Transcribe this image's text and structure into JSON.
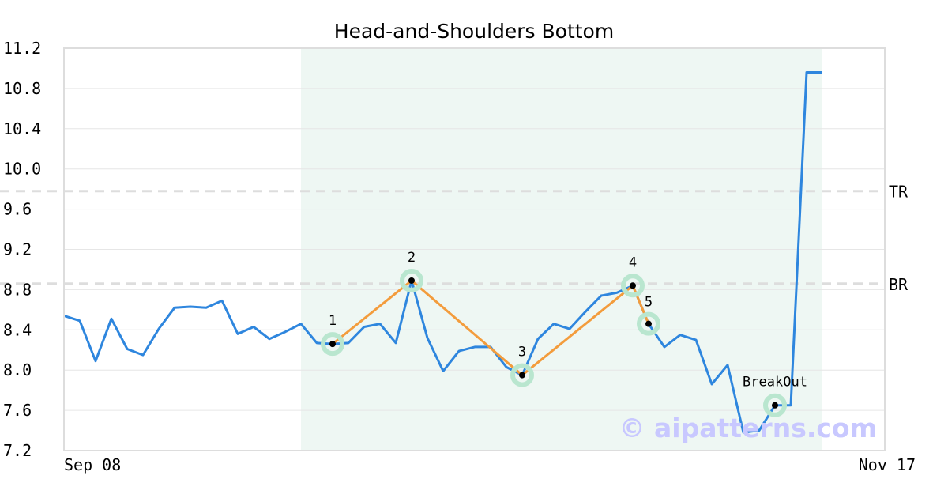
{
  "watermark": "© aipatterns.com",
  "colors": {
    "price": "#2e86de",
    "pattern": "#f39c3c",
    "marker_ring": "#b9e6cf",
    "highlight": "#eef7f3",
    "level": "#dddddd",
    "grid": "#e6e6e6",
    "frame": "#dddddd"
  },
  "chart_data": {
    "type": "line",
    "title": "Head-and-Shoulders Bottom",
    "xlabel": "",
    "ylabel": "",
    "ylim": [
      7.2,
      11.2
    ],
    "yticks": [
      "7.2",
      "7.6",
      "8.0",
      "8.4",
      "8.8",
      "9.2",
      "9.6",
      "10.0",
      "10.4",
      "10.8",
      "11.2"
    ],
    "xtick_labels": [
      {
        "index": 0,
        "label": "Sep 08"
      },
      {
        "index": 52,
        "label": "Nov 17"
      }
    ],
    "grid": true,
    "series": [
      {
        "values": [
          8.54,
          8.49,
          8.09,
          8.51,
          8.21,
          8.15,
          8.41,
          8.62,
          8.63,
          8.62,
          8.69,
          8.36,
          8.43,
          8.31,
          8.38,
          8.46,
          8.27,
          8.26,
          8.27,
          8.43,
          8.46,
          8.27,
          8.89,
          8.32,
          7.99,
          8.19,
          8.23,
          8.23,
          8.03,
          7.95,
          8.31,
          8.46,
          8.41,
          8.58,
          8.74,
          8.77,
          8.84,
          8.46,
          8.23,
          8.35,
          8.3,
          7.86,
          8.05,
          7.38,
          7.4,
          7.65,
          7.65,
          10.96,
          10.96
        ]
      }
    ],
    "highlight_range": [
      15,
      48
    ],
    "levels": [
      {
        "label": "TR",
        "value": 9.78
      },
      {
        "label": "BR",
        "value": 8.86
      }
    ],
    "pattern_points": [
      {
        "label": "1",
        "index": 17,
        "value": 8.26
      },
      {
        "label": "2",
        "index": 22,
        "value": 8.89
      },
      {
        "label": "3",
        "index": 29,
        "value": 7.95
      },
      {
        "label": "4",
        "index": 36,
        "value": 8.84
      },
      {
        "label": "5",
        "index": 37,
        "value": 8.46
      }
    ],
    "breakout": {
      "label": "BreakOut",
      "index": 45,
      "value": 7.65
    }
  }
}
